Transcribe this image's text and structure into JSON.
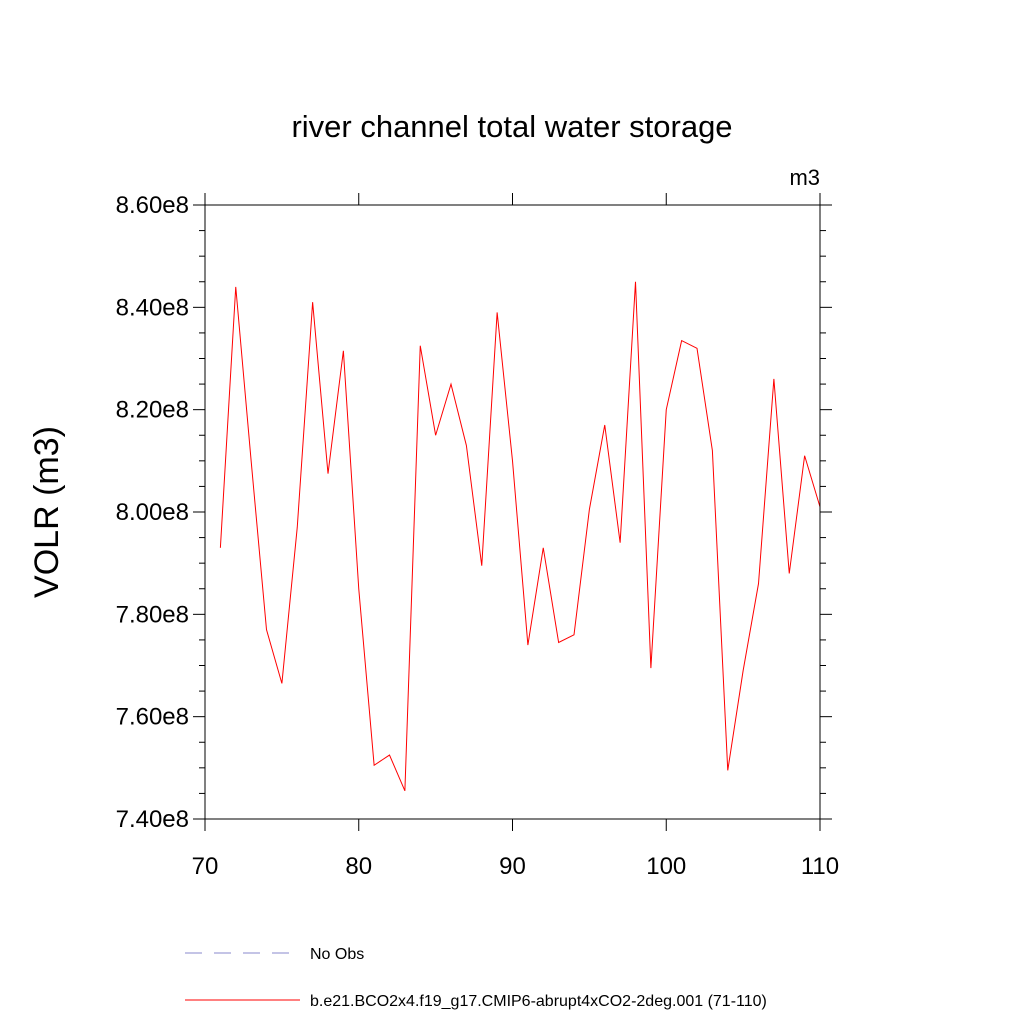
{
  "chart_data": {
    "type": "line",
    "title": "river channel total water storage",
    "unit_label": "m3",
    "ylabel": "VOLR  (m3)",
    "xlabel": "",
    "xlim": [
      70,
      110
    ],
    "ylim": [
      740000000,
      860000000
    ],
    "x_ticks": [
      70,
      80,
      90,
      100,
      110
    ],
    "x_tick_labels": [
      "70",
      "80",
      "90",
      "100",
      "110"
    ],
    "y_ticks": [
      740000000,
      760000000,
      780000000,
      800000000,
      820000000,
      840000000,
      860000000
    ],
    "y_tick_labels": [
      "7.40e8",
      "7.60e8",
      "7.80e8",
      "8.00e8",
      "8.20e8",
      "8.40e8",
      "8.60e8"
    ],
    "grid": false,
    "legend_placement": "bottom",
    "series": [
      {
        "name": "b.e21.BCO2x4.f19_g17.CMIP6-abrupt4xCO2-2deg.001 (71-110)",
        "color": "#ff0000",
        "style": "solid",
        "x": [
          71,
          72,
          73,
          74,
          75,
          76,
          77,
          78,
          79,
          80,
          81,
          82,
          83,
          84,
          85,
          86,
          87,
          88,
          89,
          90,
          91,
          92,
          93,
          94,
          95,
          96,
          97,
          98,
          99,
          100,
          101,
          102,
          103,
          104,
          105,
          106,
          107,
          108,
          109,
          110
        ],
        "values": [
          793000000,
          844000000,
          810000000,
          777000000,
          766500000,
          797000000,
          841000000,
          807500000,
          831500000,
          785000000,
          750500000,
          752500000,
          745500000,
          832500000,
          815000000,
          825000000,
          813000000,
          789500000,
          839000000,
          810000000,
          774000000,
          793000000,
          774500000,
          776000000,
          800500000,
          817000000,
          794000000,
          845000000,
          769500000,
          820000000,
          833500000,
          832000000,
          812000000,
          749500000,
          769000000,
          786000000,
          826000000,
          788000000,
          811000000,
          801000000
        ]
      },
      {
        "name": "No Obs",
        "color": "#8888cc",
        "style": "dashed",
        "x": [],
        "values": []
      }
    ]
  }
}
